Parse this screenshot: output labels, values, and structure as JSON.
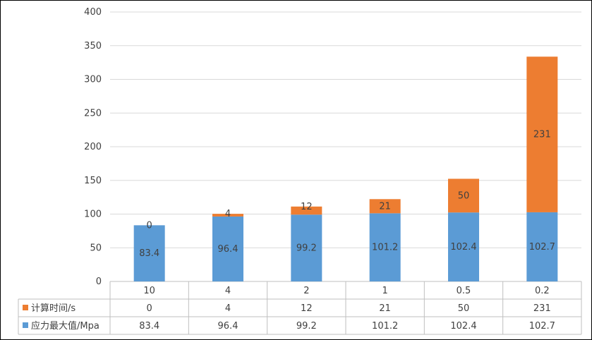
{
  "chart_data": {
    "type": "bar",
    "stacked": true,
    "categories": [
      "10",
      "4",
      "2",
      "1",
      "0.5",
      "0.2"
    ],
    "series": [
      {
        "name": "应力最大值/Mpa",
        "values": [
          83.4,
          96.4,
          99.2,
          101.2,
          102.4,
          102.7
        ],
        "color": "#5B9BD5"
      },
      {
        "name": "计算时间/s",
        "values": [
          0,
          4,
          12,
          21,
          50,
          231
        ],
        "color": "#ED7D31"
      }
    ],
    "ylim": [
      0,
      400
    ],
    "yticks": [
      0,
      50,
      100,
      150,
      200,
      250,
      300,
      350,
      400
    ],
    "grid": true,
    "data_table": true,
    "table_rows_order": [
      "计算时间/s",
      "应力最大值/Mpa"
    ],
    "axis_color": "#BFBFBF",
    "grid_color": "#D9D9D9",
    "title": "",
    "xlabel": "",
    "ylabel": ""
  }
}
